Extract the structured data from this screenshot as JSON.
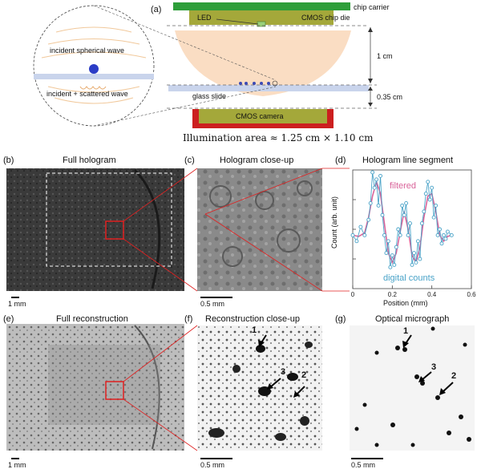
{
  "panel_a": {
    "letter": "(a)",
    "chip_carrier": "chip carrier",
    "led": "LED",
    "cmos_chip_die": "CMOS chip die",
    "incident_spherical_wave": "incident spherical wave",
    "incident_scattered_wave": "incident + scattered wave",
    "glass_slide": "glass slide",
    "cmos_camera": "CMOS camera",
    "dim_1cm": "1 cm",
    "dim_035cm": "0.35 cm",
    "illumination_area": "Illumination area ≈ 1.25 cm × 1.10 cm"
  },
  "panel_b": {
    "letter": "(b)",
    "title": "Full hologram",
    "scale": "1 mm"
  },
  "panel_c": {
    "letter": "(c)",
    "title": "Hologram close-up",
    "scale": "0.5 mm"
  },
  "panel_d": {
    "letter": "(d)",
    "title": "Hologram line segment",
    "filtered_label": "filtered",
    "digital_label": "digital counts"
  },
  "panel_e": {
    "letter": "(e)",
    "title": "Full reconstruction",
    "scale": "1 mm"
  },
  "panel_f": {
    "letter": "(f)",
    "title": "Reconstruction close-up",
    "scale": "0.5 mm",
    "markers": [
      "1",
      "2",
      "3"
    ]
  },
  "panel_g": {
    "letter": "(g)",
    "title": "Optical micrograph",
    "scale": "0.5 mm",
    "markers": [
      "1",
      "2",
      "3"
    ]
  },
  "colors": {
    "green": "#2e9e3a",
    "olive": "#a4a83a",
    "red": "#cc1f1f",
    "beam": "#f9d7b8",
    "filtered": "#d9649a",
    "digital": "#4aa3c8"
  },
  "chart_data": {
    "type": "line",
    "title": "Hologram line segment",
    "xlabel": "Position (mm)",
    "ylabel": "Count (arb. unit)",
    "xlim": [
      0,
      0.6
    ],
    "xticks": [
      "0",
      "0.2",
      "0.4",
      "0.6"
    ],
    "series": [
      {
        "name": "filtered",
        "x": [
          0,
          0.03,
          0.06,
          0.08,
          0.1,
          0.12,
          0.14,
          0.16,
          0.18,
          0.2,
          0.22,
          0.24,
          0.26,
          0.28,
          0.3,
          0.32,
          0.34,
          0.36,
          0.38,
          0.4,
          0.42,
          0.44,
          0.46,
          0.48,
          0.5
        ],
        "values": [
          0.45,
          0.44,
          0.47,
          0.6,
          0.78,
          0.9,
          0.8,
          0.55,
          0.3,
          0.22,
          0.3,
          0.48,
          0.65,
          0.5,
          0.28,
          0.22,
          0.35,
          0.6,
          0.78,
          0.8,
          0.65,
          0.45,
          0.4,
          0.44,
          0.45
        ]
      },
      {
        "name": "digital counts",
        "x": [
          0,
          0.02,
          0.04,
          0.06,
          0.08,
          0.09,
          0.1,
          0.11,
          0.12,
          0.13,
          0.14,
          0.15,
          0.16,
          0.17,
          0.18,
          0.19,
          0.2,
          0.21,
          0.22,
          0.23,
          0.24,
          0.25,
          0.26,
          0.27,
          0.28,
          0.29,
          0.3,
          0.31,
          0.32,
          0.33,
          0.34,
          0.35,
          0.36,
          0.37,
          0.38,
          0.39,
          0.4,
          0.41,
          0.42,
          0.43,
          0.44,
          0.45,
          0.46,
          0.47,
          0.48,
          0.5
        ],
        "values": [
          0.45,
          0.4,
          0.52,
          0.45,
          0.58,
          0.72,
          0.98,
          0.85,
          0.92,
          0.7,
          0.95,
          0.62,
          0.45,
          0.3,
          0.4,
          0.18,
          0.28,
          0.2,
          0.35,
          0.5,
          0.45,
          0.7,
          0.62,
          0.72,
          0.45,
          0.55,
          0.2,
          0.3,
          0.22,
          0.4,
          0.25,
          0.55,
          0.65,
          0.8,
          0.9,
          0.75,
          0.85,
          0.6,
          0.7,
          0.45,
          0.5,
          0.38,
          0.45,
          0.42,
          0.48,
          0.45
        ]
      }
    ]
  }
}
